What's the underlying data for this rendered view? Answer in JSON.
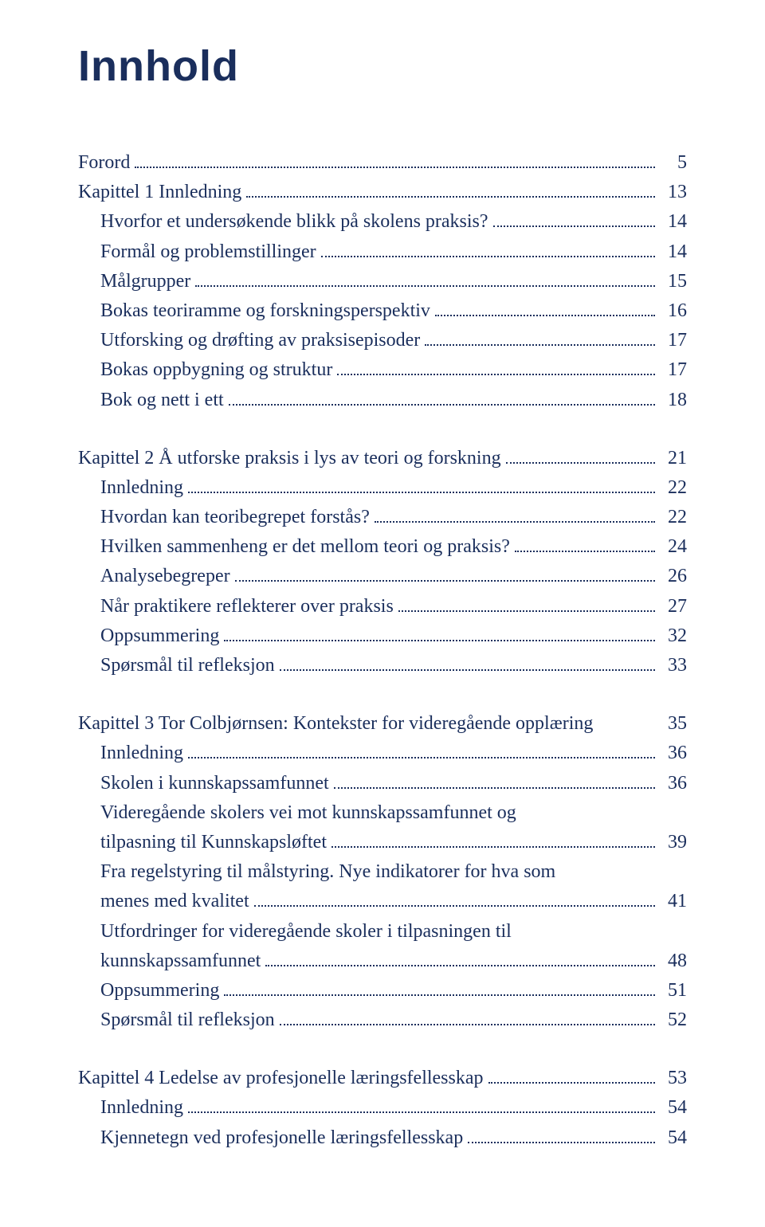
{
  "title": "Innhold",
  "title_color": "#1a2e5c",
  "title_fontsize": 54,
  "body_color": "#1a2e5c",
  "body_fontsize": 24,
  "leader_color": "#1a2e5c",
  "groups": [
    {
      "entries": [
        {
          "label": "Forord",
          "page": "5",
          "indent": false
        },
        {
          "label": "Kapittel 1 Innledning",
          "page": "13",
          "indent": false
        },
        {
          "label": "Hvorfor et undersøkende blikk på skolens praksis?",
          "page": "14",
          "indent": true
        },
        {
          "label": "Formål og problemstillinger",
          "page": "14",
          "indent": true
        },
        {
          "label": "Målgrupper",
          "page": "15",
          "indent": true
        },
        {
          "label": "Bokas teoriramme og forskningsperspektiv",
          "page": "16",
          "indent": true
        },
        {
          "label": "Utforsking og drøfting av praksisepisoder",
          "page": "17",
          "indent": true
        },
        {
          "label": "Bokas oppbygning og struktur",
          "page": "17",
          "indent": true
        },
        {
          "label": "Bok og nett i ett",
          "page": "18",
          "indent": true
        }
      ]
    },
    {
      "entries": [
        {
          "label": "Kapittel 2 Å utforske praksis i lys av teori og forskning",
          "page": "21",
          "indent": false
        },
        {
          "label": "Innledning",
          "page": "22",
          "indent": true
        },
        {
          "label": "Hvordan kan teoribegrepet forstås?",
          "page": "22",
          "indent": true
        },
        {
          "label": "Hvilken sammenheng er det mellom teori og praksis?",
          "page": "24",
          "indent": true
        },
        {
          "label": "Analysebegreper",
          "page": "26",
          "indent": true
        },
        {
          "label": "Når praktikere reflekterer over praksis",
          "page": "27",
          "indent": true
        },
        {
          "label": "Oppsummering",
          "page": "32",
          "indent": true
        },
        {
          "label": "Spørsmål til refleksjon",
          "page": "33",
          "indent": true
        }
      ]
    },
    {
      "entries": [
        {
          "label": "Kapittel 3 Tor Colbjørnsen: Kontekster for videregående opplæring",
          "page": "35",
          "indent": false,
          "no_leader": true
        },
        {
          "label": "Innledning",
          "page": "36",
          "indent": true
        },
        {
          "label": "Skolen i kunnskapssamfunnet",
          "page": "36",
          "indent": true
        },
        {
          "label": "Videregående skolers vei mot kunnskapssamfunnet og",
          "cont": "tilpasning til Kunnskapsløftet",
          "page": "39",
          "indent": true
        },
        {
          "label": "Fra regelstyring til målstyring. Nye indikatorer for hva som",
          "cont": "menes med kvalitet",
          "page": "41",
          "indent": true
        },
        {
          "label": "Utfordringer for videregående skoler i tilpasningen til",
          "cont": "kunnskapssamfunnet",
          "page": "48",
          "indent": true
        },
        {
          "label": "Oppsummering",
          "page": "51",
          "indent": true
        },
        {
          "label": "Spørsmål til refleksjon",
          "page": "52",
          "indent": true
        }
      ]
    },
    {
      "entries": [
        {
          "label": "Kapittel 4 Ledelse av profesjonelle læringsfellesskap",
          "page": "53",
          "indent": false
        },
        {
          "label": "Innledning",
          "page": "54",
          "indent": true
        },
        {
          "label": "Kjennetegn ved profesjonelle læringsfellesskap",
          "page": "54",
          "indent": true
        }
      ]
    }
  ]
}
